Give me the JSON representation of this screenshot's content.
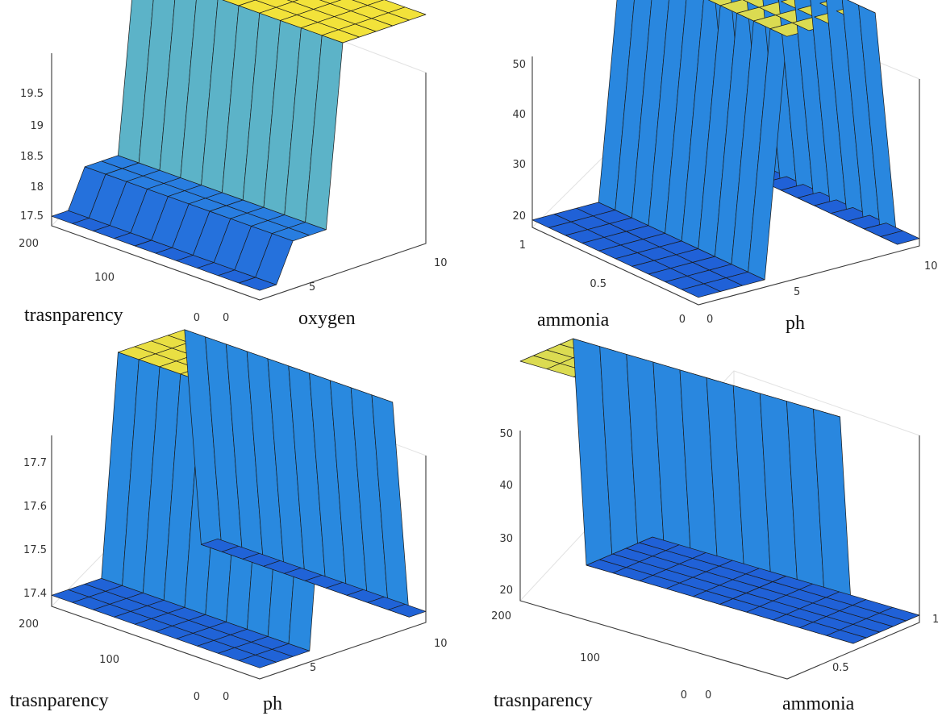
{
  "charts": [
    {
      "xlabel": "oxygen",
      "ylabel": "trasnparency",
      "zticks": [
        "17.5",
        "18",
        "18.5",
        "19",
        "19.5"
      ],
      "xticks": [
        "0",
        "5",
        "10"
      ],
      "yticks": [
        "0",
        "100",
        "200"
      ]
    },
    {
      "xlabel": "ph",
      "ylabel": "ammonia",
      "zticks": [
        "20",
        "30",
        "40",
        "50"
      ],
      "xticks": [
        "0",
        "5",
        "10"
      ],
      "yticks": [
        "0",
        "0.5",
        "1"
      ]
    },
    {
      "xlabel": "ph",
      "ylabel": "trasnparency",
      "zticks": [
        "17.4",
        "17.5",
        "17.6",
        "17.7"
      ],
      "xticks": [
        "0",
        "5",
        "10"
      ],
      "yticks": [
        "0",
        "100",
        "200"
      ]
    },
    {
      "xlabel": "ammonia",
      "ylabel": "trasnparency",
      "zticks": [
        "20",
        "30",
        "40",
        "50"
      ],
      "xticks": [
        "0",
        "0.5",
        "1"
      ],
      "yticks": [
        "0",
        "100",
        "200"
      ]
    }
  ],
  "chart_data": [
    {
      "type": "surface",
      "x_variable": "oxygen",
      "y_variable": "trasnparency",
      "xlim": [
        0,
        10
      ],
      "ylim": [
        0,
        200
      ],
      "zlim": [
        17.3,
        19.7
      ],
      "x": [
        0,
        1,
        2,
        3,
        4,
        5,
        6,
        7,
        8,
        9,
        10
      ],
      "y": [
        0,
        20,
        40,
        60,
        80,
        100,
        120,
        140,
        160,
        180,
        200
      ],
      "z_by_x_description": "z depends on oxygen only",
      "z_profile": [
        17.4,
        17.4,
        17.8,
        17.8,
        17.8,
        19.7,
        19.7,
        19.7,
        19.7,
        19.7,
        19.7
      ],
      "colors": {
        "low": "#1f5fd6",
        "mid": "#35a6ee",
        "high": "#f2e23a"
      }
    },
    {
      "type": "surface",
      "x_variable": "ph",
      "y_variable": "ammonia",
      "xlim": [
        0,
        10
      ],
      "ylim": [
        0,
        1
      ],
      "zlim": [
        17,
        52
      ],
      "x": [
        0,
        1,
        2,
        3,
        4,
        5,
        6,
        7,
        8,
        9,
        10
      ],
      "y": [
        0,
        0.1,
        0.2,
        0.3,
        0.4,
        0.5,
        0.6,
        0.7,
        0.8,
        0.9,
        1
      ],
      "z_profile": [
        18,
        18,
        18,
        18,
        50,
        50,
        50,
        50,
        50,
        18,
        18
      ],
      "colors": {
        "low": "#1f5fd6",
        "high": "#f2e23a"
      }
    },
    {
      "type": "surface",
      "x_variable": "ph",
      "y_variable": "trasnparency",
      "xlim": [
        0,
        10
      ],
      "ylim": [
        0,
        200
      ],
      "zlim": [
        17.35,
        17.78
      ],
      "x": [
        0,
        1,
        2,
        3,
        4,
        5,
        6,
        7,
        8,
        9,
        10
      ],
      "y": [
        0,
        20,
        40,
        60,
        80,
        100,
        120,
        140,
        160,
        180,
        200
      ],
      "z_profile": [
        17.37,
        17.37,
        17.37,
        17.37,
        17.77,
        17.77,
        17.77,
        17.77,
        17.77,
        17.37,
        17.37
      ],
      "colors": {
        "low": "#1f5fd6",
        "high": "#f2e23a"
      }
    },
    {
      "type": "surface",
      "x_variable": "ammonia",
      "y_variable": "trasnparency",
      "xlim": [
        0,
        1
      ],
      "ylim": [
        0,
        200
      ],
      "zlim": [
        17,
        52
      ],
      "x": [
        0,
        0.1,
        0.2,
        0.3,
        0.4,
        0.5,
        0.6,
        0.7,
        0.8,
        0.9,
        1
      ],
      "y": [
        0,
        20,
        40,
        60,
        80,
        100,
        120,
        140,
        160,
        180,
        200
      ],
      "z_profile": [
        50,
        50,
        50,
        50,
        50,
        18,
        18,
        18,
        18,
        18,
        18
      ],
      "colors": {
        "low": "#1f5fd6",
        "high": "#f2e23a"
      }
    }
  ]
}
